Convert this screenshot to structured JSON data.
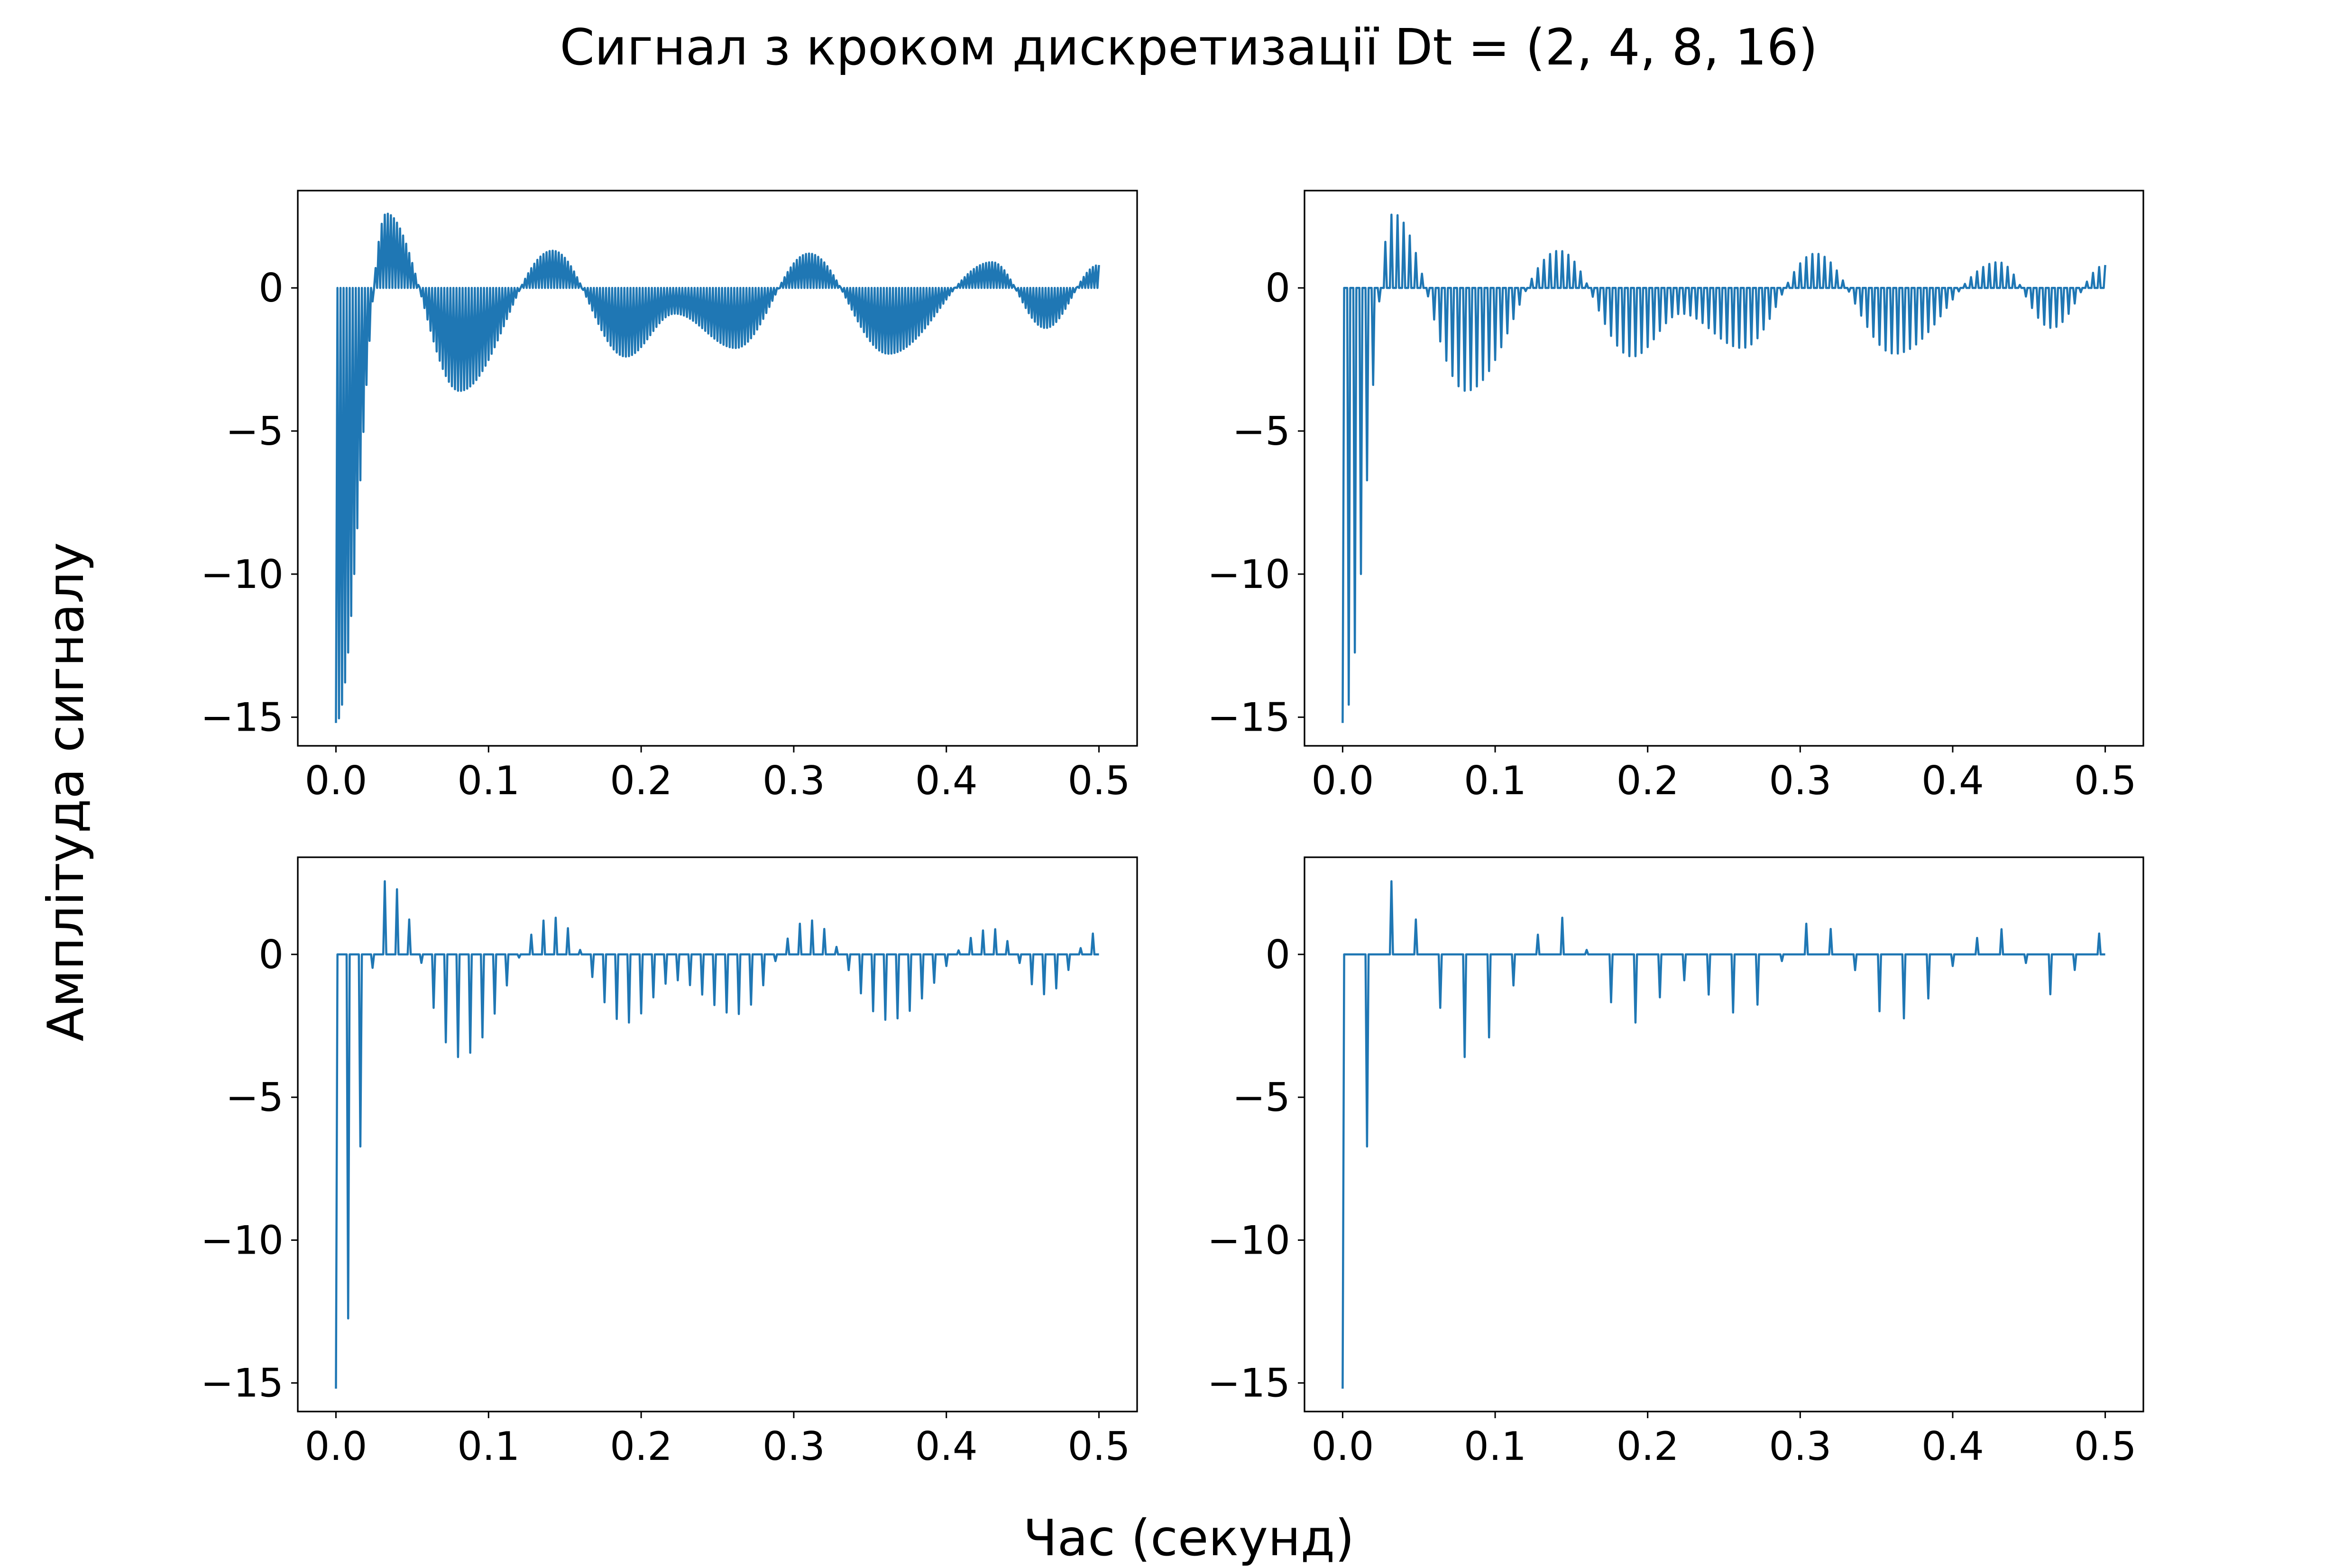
{
  "figure": {
    "title": "Сигнал з кроком дискретизації Dt = (2, 4, 8, 16)",
    "xlabel": "Час (секунд)",
    "ylabel": "Амплітуда сигналу"
  },
  "style": {
    "line_color": "#1f77b4",
    "axes_color": "#000000",
    "background": "#ffffff"
  },
  "chart_data": [
    {
      "type": "line",
      "subplot": "top-left",
      "sampling_step": 2,
      "x_range": [
        0,
        0.5
      ],
      "xlim": [
        -0.025,
        0.525
      ],
      "ylim": [
        -16,
        3.4
      ],
      "xticks": [
        "0.0",
        "0.1",
        "0.2",
        "0.3",
        "0.4",
        "0.5"
      ],
      "yticks": [
        "0",
        "−5",
        "−10",
        "−15"
      ],
      "grid": false,
      "series": [
        {
          "signal": "sampled, zeros between samples",
          "extrema": [
            [
              0.0,
              -15.2
            ],
            [
              0.033,
              2.6
            ],
            [
              0.081,
              -3.6
            ],
            [
              0.142,
              1.3
            ],
            [
              0.19,
              -2.4
            ],
            [
              0.222,
              -0.9
            ],
            [
              0.262,
              -2.1
            ],
            [
              0.31,
              1.2
            ],
            [
              0.362,
              -2.3
            ],
            [
              0.43,
              0.9
            ],
            [
              0.465,
              -1.4
            ],
            [
              0.5,
              0.8
            ]
          ]
        }
      ]
    },
    {
      "type": "line",
      "subplot": "top-right",
      "sampling_step": 4,
      "x_range": [
        0,
        0.5
      ],
      "xlim": [
        -0.025,
        0.525
      ],
      "ylim": [
        -16,
        3.4
      ],
      "xticks": [
        "0.0",
        "0.1",
        "0.2",
        "0.3",
        "0.4",
        "0.5"
      ],
      "yticks": [
        "0",
        "−5",
        "−10",
        "−15"
      ],
      "grid": false,
      "series": [
        {
          "signal": "sampled, zeros between samples",
          "extrema": [
            [
              0.0,
              -15.2
            ],
            [
              0.033,
              2.6
            ],
            [
              0.081,
              -3.6
            ],
            [
              0.142,
              1.3
            ],
            [
              0.19,
              -2.4
            ],
            [
              0.222,
              -0.9
            ],
            [
              0.262,
              -2.1
            ],
            [
              0.31,
              1.2
            ],
            [
              0.362,
              -2.3
            ],
            [
              0.43,
              0.9
            ],
            [
              0.465,
              -1.4
            ],
            [
              0.5,
              0.8
            ]
          ]
        }
      ]
    },
    {
      "type": "line",
      "subplot": "bottom-left",
      "sampling_step": 8,
      "x_range": [
        0,
        0.5
      ],
      "xlim": [
        -0.025,
        0.525
      ],
      "ylim": [
        -16,
        3.4
      ],
      "xticks": [
        "0.0",
        "0.1",
        "0.2",
        "0.3",
        "0.4",
        "0.5"
      ],
      "yticks": [
        "0",
        "−5",
        "−10",
        "−15"
      ],
      "grid": false,
      "series": [
        {
          "signal": "sampled, zeros between samples",
          "extrema": [
            [
              0.0,
              -15.2
            ],
            [
              0.033,
              2.6
            ],
            [
              0.081,
              -3.6
            ],
            [
              0.142,
              1.3
            ],
            [
              0.19,
              -2.4
            ],
            [
              0.222,
              -0.9
            ],
            [
              0.262,
              -2.1
            ],
            [
              0.31,
              1.2
            ],
            [
              0.362,
              -2.3
            ],
            [
              0.43,
              0.9
            ],
            [
              0.465,
              -1.4
            ],
            [
              0.5,
              0.8
            ]
          ]
        }
      ]
    },
    {
      "type": "line",
      "subplot": "bottom-right",
      "sampling_step": 16,
      "x_range": [
        0,
        0.5
      ],
      "xlim": [
        -0.025,
        0.525
      ],
      "ylim": [
        -16,
        3.4
      ],
      "xticks": [
        "0.0",
        "0.1",
        "0.2",
        "0.3",
        "0.4",
        "0.5"
      ],
      "yticks": [
        "0",
        "−5",
        "−10",
        "−15"
      ],
      "grid": false,
      "series": [
        {
          "signal": "sampled, zeros between samples",
          "extrema": [
            [
              0.0,
              -15.2
            ],
            [
              0.033,
              2.6
            ],
            [
              0.081,
              -3.6
            ],
            [
              0.142,
              1.3
            ],
            [
              0.19,
              -2.4
            ],
            [
              0.222,
              -0.9
            ],
            [
              0.262,
              -2.1
            ],
            [
              0.31,
              1.2
            ],
            [
              0.362,
              -2.3
            ],
            [
              0.43,
              0.9
            ],
            [
              0.465,
              -1.4
            ],
            [
              0.5,
              0.8
            ]
          ]
        }
      ]
    }
  ]
}
